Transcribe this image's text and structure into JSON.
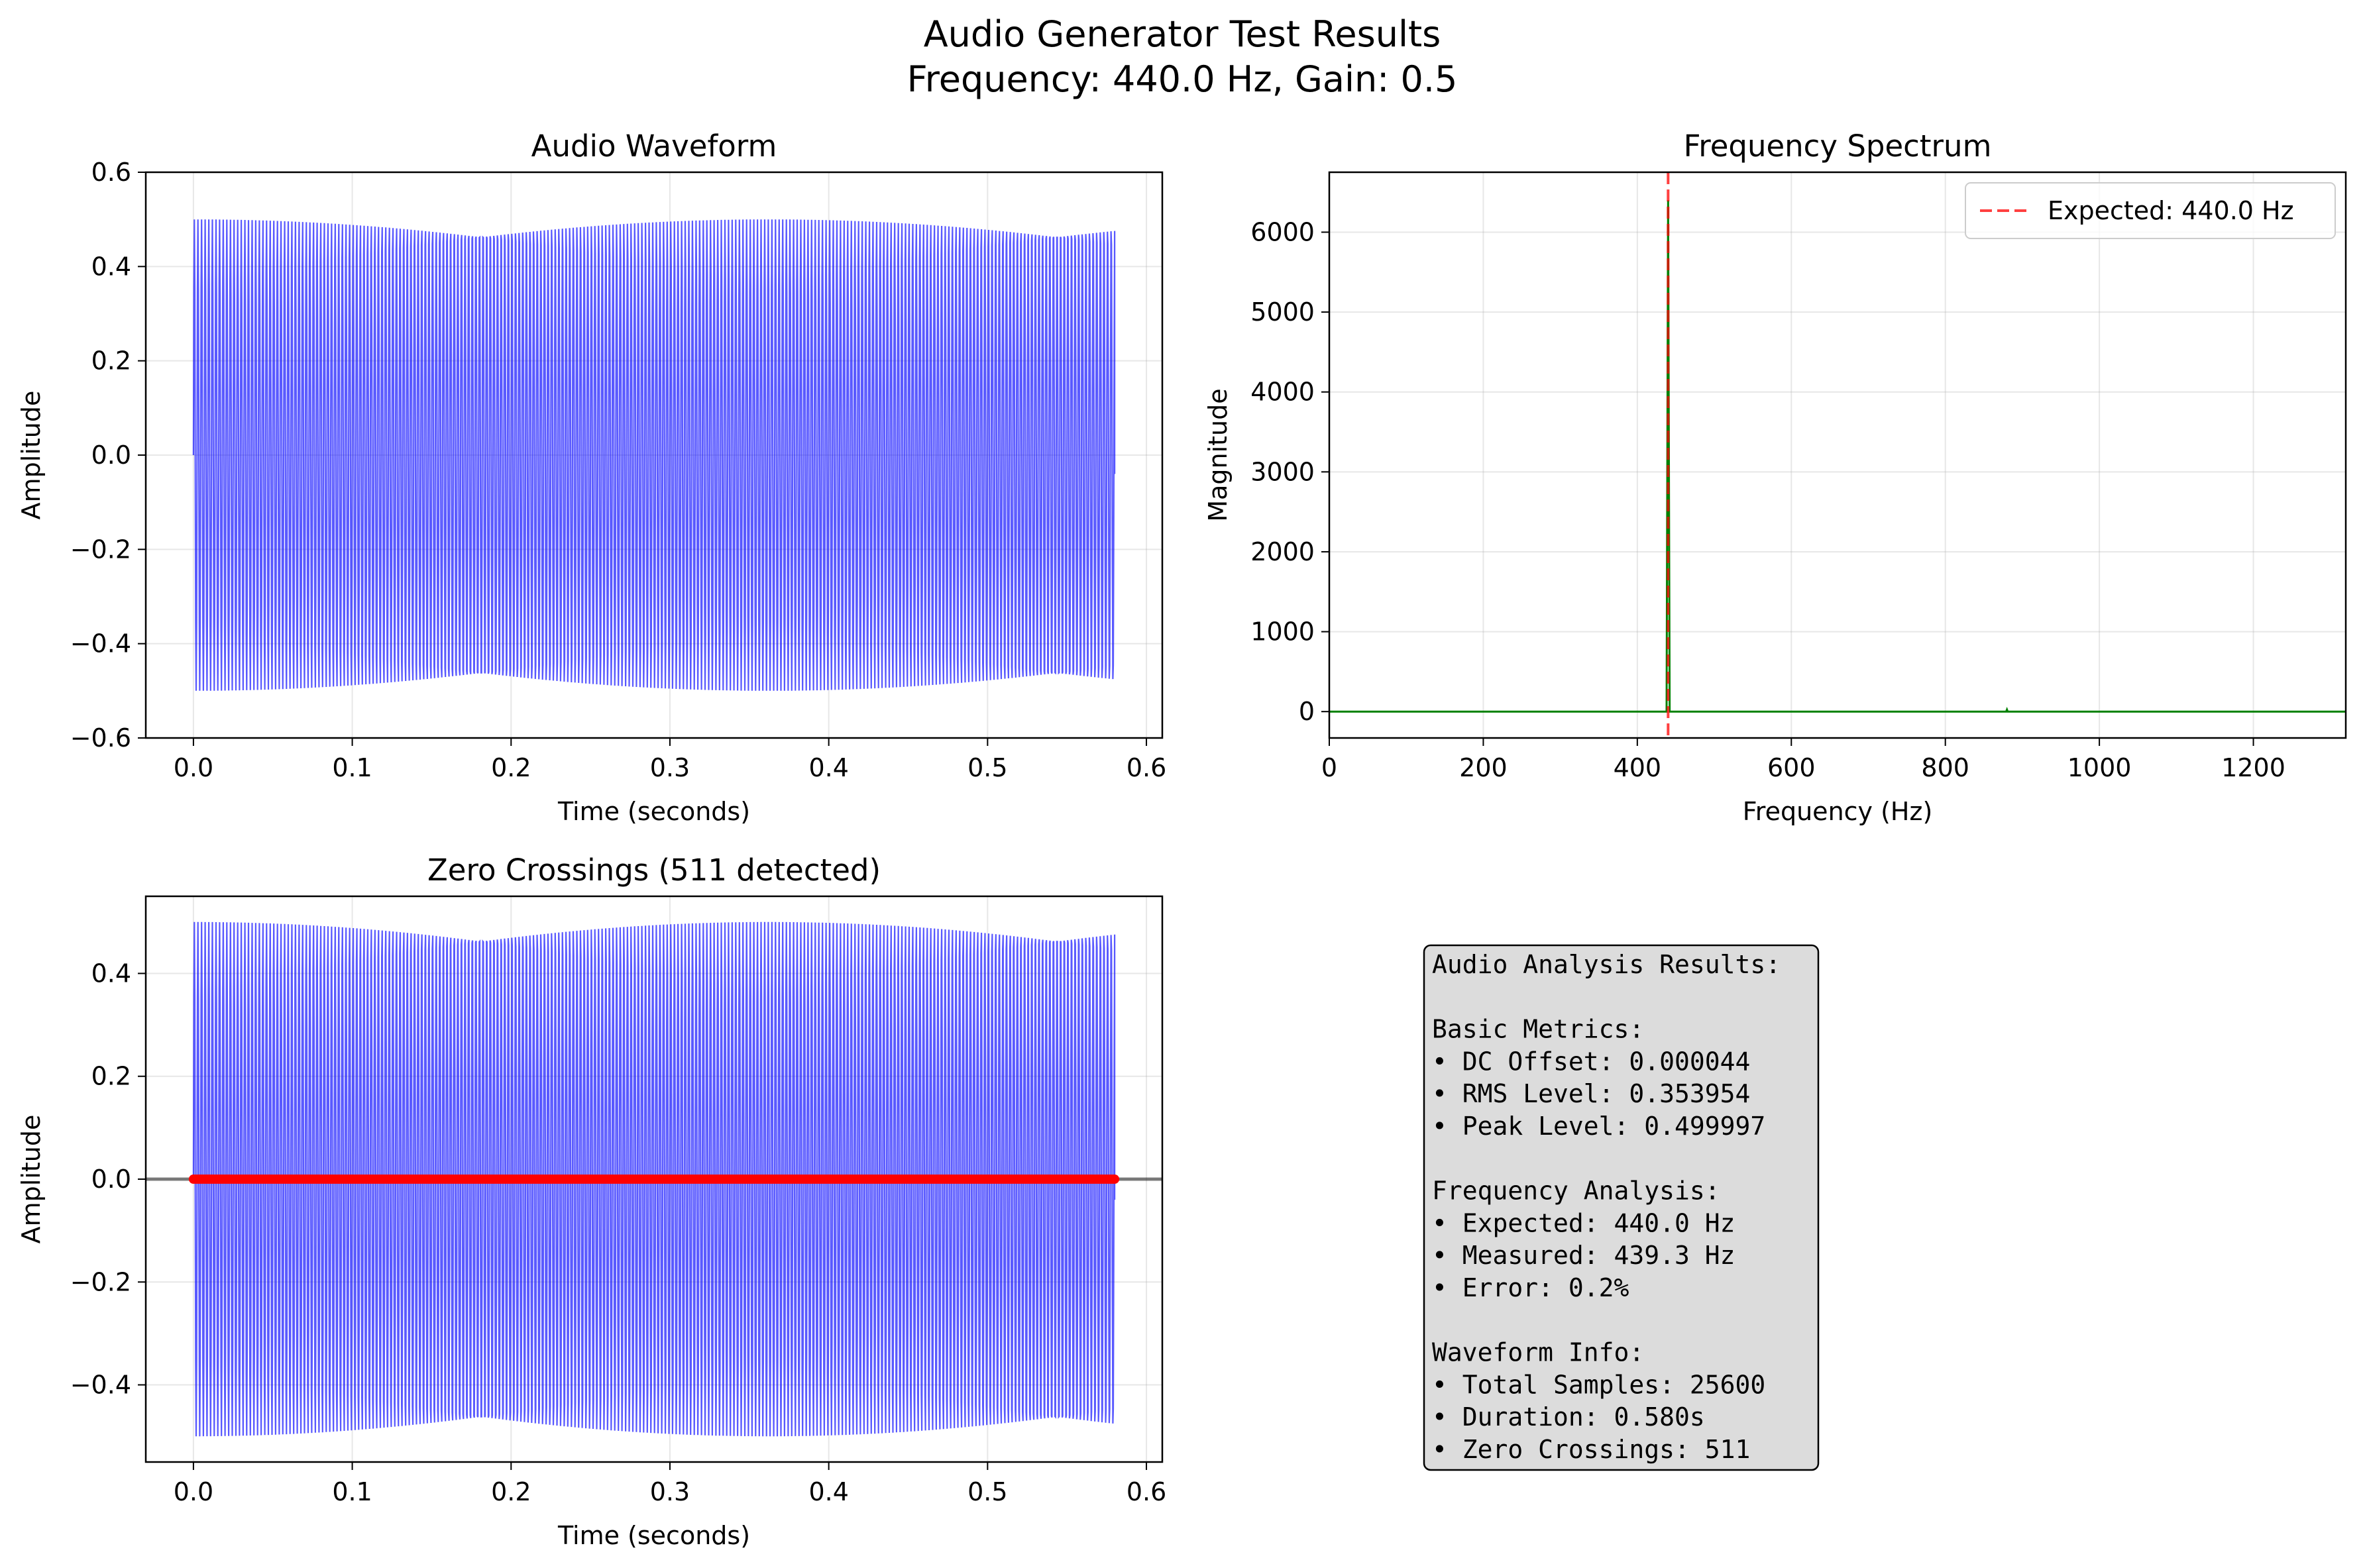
{
  "suptitle": [
    "Audio Generator Test Results",
    "Frequency: 440.0 Hz, Gain: 0.5"
  ],
  "colors": {
    "waveform": "#0000ff",
    "spectrum": "#008000",
    "expected_line": "#ff0000",
    "crossings": "#ff0000",
    "axhline": "#000000",
    "textbox_bg": "#dcdcdc"
  },
  "chart_data": [
    {
      "type": "line",
      "title": "Audio Waveform",
      "xlabel": "Time (seconds)",
      "ylabel": "Amplitude",
      "xlim": [
        -0.03,
        0.61
      ],
      "ylim": [
        -0.6,
        0.6
      ],
      "xticks": [
        "0.0",
        "0.1",
        "0.2",
        "0.3",
        "0.4",
        "0.5",
        "0.6"
      ],
      "yticks": [
        "0.6",
        "0.4",
        "0.2",
        "0.0",
        "−0.2",
        "−0.4",
        "−0.6"
      ],
      "grid": true,
      "series": [
        {
          "frequency_hz": 440.0,
          "amplitude": 0.5,
          "duration_s": 0.58,
          "end_value": -0.04
        }
      ]
    },
    {
      "type": "line",
      "title": "Frequency Spectrum",
      "xlabel": "Frequency (Hz)",
      "ylabel": "Magnitude",
      "xlim": [
        0,
        1320
      ],
      "ylim": [
        -330,
        6750
      ],
      "xticks": [
        "0",
        "200",
        "400",
        "600",
        "800",
        "1000",
        "1200"
      ],
      "yticks": [
        "6000",
        "5000",
        "4000",
        "3000",
        "2000",
        "1000",
        "0"
      ],
      "grid": true,
      "legend_position": "upper right",
      "legend": [
        "Expected: 440.0 Hz"
      ],
      "series": [
        {
          "peak_frequency": 440,
          "peak_magnitude": 6400,
          "x_start": 0,
          "x_end": 1320,
          "baseline": 0,
          "minor_peak": {
            "x": 880,
            "y": 25
          }
        }
      ],
      "expected_frequency": 440.0
    },
    {
      "type": "line",
      "title": "Zero Crossings (511 detected)",
      "xlabel": "Time (seconds)",
      "ylabel": "Amplitude",
      "xlim": [
        -0.03,
        0.61
      ],
      "ylim": [
        -0.55,
        0.55
      ],
      "xticks": [
        "0.0",
        "0.1",
        "0.2",
        "0.3",
        "0.4",
        "0.5",
        "0.6"
      ],
      "yticks": [
        "0.4",
        "0.2",
        "0.0",
        "−0.2",
        "−0.4"
      ],
      "grid": true,
      "series": [
        {
          "frequency_hz": 440.0,
          "amplitude": 0.5,
          "duration_s": 0.58,
          "end_value": -0.04
        }
      ],
      "zero_crossings": {
        "count": 511,
        "t_start": 0.0,
        "t_end": 0.58,
        "y": 0.0
      },
      "axhline": 0.0
    }
  ],
  "results_box": [
    "Audio Analysis Results:",
    "",
    "Basic Metrics:",
    "• DC Offset: 0.000044",
    "• RMS Level: 0.353954",
    "• Peak Level: 0.499997",
    "",
    "Frequency Analysis:",
    "• Expected: 440.0 Hz",
    "• Measured: 439.3 Hz",
    "• Error: 0.2%",
    "",
    "Waveform Info:",
    "• Total Samples: 25600",
    "• Duration: 0.580s",
    "• Zero Crossings: 511"
  ]
}
